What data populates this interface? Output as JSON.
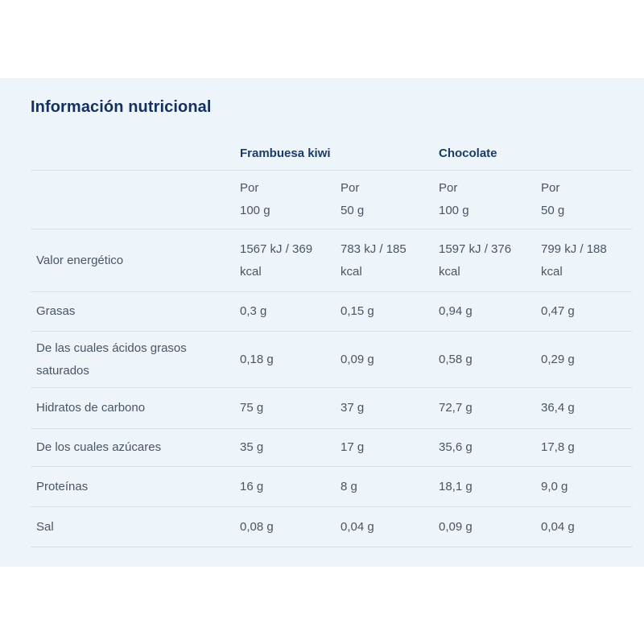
{
  "section": {
    "title": "Información nutricional"
  },
  "table": {
    "groups": [
      {
        "label": "Frambuesa kiwi"
      },
      {
        "label": "Chocolate"
      }
    ],
    "portions": [
      "Por\n100 g",
      "Por\n50 g",
      "Por\n100 g",
      "Por\n50 g"
    ],
    "rows": [
      {
        "label": "Valor energético",
        "values": [
          "1567 kJ / 369 kcal",
          "783 kJ / 185 kcal",
          "1597 kJ / 376 kcal",
          "799 kJ / 188 kcal"
        ]
      },
      {
        "label": "Grasas",
        "values": [
          "0,3 g",
          "0,15 g",
          "0,94 g",
          "0,47 g"
        ]
      },
      {
        "label": "De las cuales ácidos grasos saturados",
        "values": [
          "0,18 g",
          "0,09 g",
          "0,58 g",
          "0,29 g"
        ]
      },
      {
        "label": "Hidratos de carbono",
        "values": [
          "75 g",
          "37 g",
          "72,7 g",
          "36,4 g"
        ]
      },
      {
        "label": "De los cuales azúcares",
        "values": [
          "35 g",
          "17 g",
          "35,6 g",
          "17,8 g"
        ]
      },
      {
        "label": "Proteínas",
        "values": [
          "16 g",
          "8 g",
          "18,1 g",
          "9,0 g"
        ]
      },
      {
        "label": "Sal",
        "values": [
          "0,08 g",
          "0,04 g",
          "0,09 g",
          "0,04 g"
        ]
      }
    ]
  },
  "colors": {
    "panel_bg": "#edf5fb",
    "title_color": "#152f5e",
    "group_color": "#1d3c64",
    "body_color": "#485562",
    "divider_color": "#d8e1e8"
  }
}
